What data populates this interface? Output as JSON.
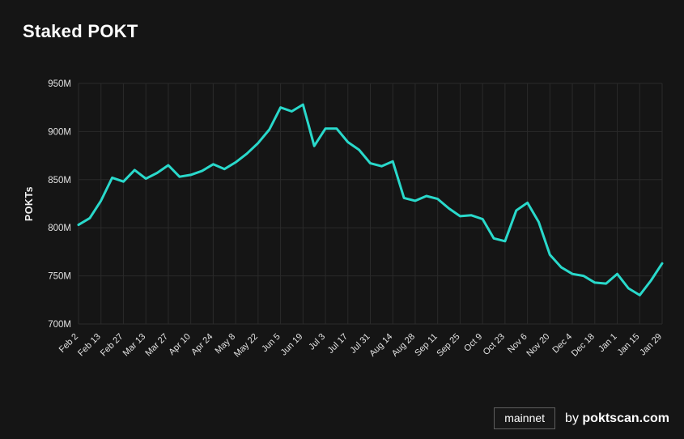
{
  "title": "Staked POKT",
  "footer": {
    "network_badge": "mainnet",
    "by_text": "by",
    "brand": "poktscan.com"
  },
  "colors": {
    "background": "#151515",
    "line": "#29d9cb",
    "grid": "#2a2a2a",
    "tick_text": "#e3e3e3",
    "title_text": "#ffffff"
  },
  "chart_data": {
    "type": "line",
    "title": "Staked POKT",
    "xlabel": "",
    "ylabel": "POKTs",
    "ylim": [
      700,
      950
    ],
    "yticks": [
      700,
      750,
      800,
      850,
      900,
      950
    ],
    "ytick_suffix": "M",
    "grid": true,
    "legend": "none",
    "points_per_tick": 2,
    "categories": [
      "Feb 2",
      "Feb 13",
      "Feb 27",
      "Mar 13",
      "Mar 27",
      "Apr 10",
      "Apr 24",
      "May 8",
      "May 22",
      "Jun 5",
      "Jun 19",
      "Jul 3",
      "Jul 17",
      "Jul 31",
      "Aug 14",
      "Aug 28",
      "Sep 11",
      "Sep 25",
      "Oct 9",
      "Oct 23",
      "Nov 6",
      "Nov 20",
      "Dec 4",
      "Dec 18",
      "Jan 1",
      "Jan 15",
      "Jan 29"
    ],
    "series": [
      {
        "name": "Staked POKT (millions)",
        "values": [
          803,
          810,
          828,
          852,
          848,
          860,
          851,
          857,
          865,
          853,
          855,
          859,
          866,
          861,
          868,
          877,
          888,
          902,
          925,
          921,
          928,
          885,
          903,
          903,
          889,
          881,
          867,
          864,
          869,
          831,
          828,
          833,
          830,
          820,
          812,
          813,
          809,
          789,
          786,
          818,
          826,
          806,
          772,
          759,
          752,
          750,
          743,
          742,
          752,
          737,
          730,
          745,
          763
        ]
      }
    ]
  }
}
